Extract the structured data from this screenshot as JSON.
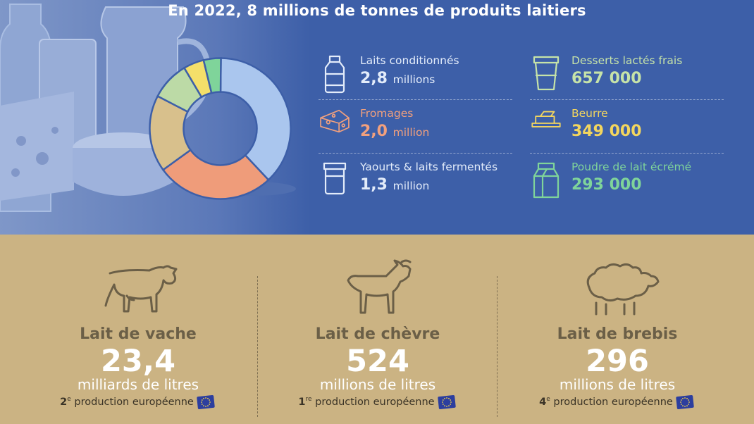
{
  "title": "En 2022, 8 millions de tonnes de produits laitiers",
  "chart_data": {
    "type": "pie",
    "categories": [
      "Laits conditionnés",
      "Fromages",
      "Yaourts & laits fermentés",
      "Desserts lactés frais",
      "Beurre",
      "Poudre de lait écrémé"
    ],
    "values": [
      2.8,
      2.0,
      1.3,
      0.657,
      0.349,
      0.293
    ],
    "colors": [
      "#aac6ee",
      "#ef9c7a",
      "#d8c08c",
      "#bcdaa6",
      "#f4df6a",
      "#7fd49a"
    ]
  },
  "products": [
    {
      "label": "Laits conditionnés",
      "value": "2,8",
      "unit": "millions",
      "color": "#e3ecfa",
      "icon": "milk-bottle-icon"
    },
    {
      "label": "Fromages",
      "value": "2,0",
      "unit": "million",
      "color": "#f2a07d",
      "icon": "cheese-icon"
    },
    {
      "label": "Yaourts & laits fermentés",
      "value": "1,3",
      "unit": "million",
      "color": "#e3ecfa",
      "icon": "yogurt-jar-icon"
    },
    {
      "label": "Desserts lactés frais",
      "value": "657 000",
      "unit": "",
      "color": "#c6e3a8",
      "icon": "dessert-cup-icon"
    },
    {
      "label": "Beurre",
      "value": "349 000",
      "unit": "",
      "color": "#f3d65e",
      "icon": "butter-icon"
    },
    {
      "label": "Poudre de lait écrémé",
      "value": "293 000",
      "unit": "",
      "color": "#7fd49a",
      "icon": "milk-carton-icon"
    }
  ],
  "milks": [
    {
      "name": "Lait de vache",
      "value": "23,4",
      "unit": "milliards de litres",
      "rank": "2",
      "rank_sup": "e",
      "rank_text": "production européenne",
      "icon": "cow-icon"
    },
    {
      "name": "Lait de chèvre",
      "value": "524",
      "unit": "millions de litres",
      "rank": "1",
      "rank_sup": "re",
      "rank_text": "production européenne",
      "icon": "goat-icon"
    },
    {
      "name": "Lait de brebis",
      "value": "296",
      "unit": "millions de litres",
      "rank": "4",
      "rank_sup": "e",
      "rank_text": "production européenne",
      "icon": "sheep-icon"
    }
  ]
}
